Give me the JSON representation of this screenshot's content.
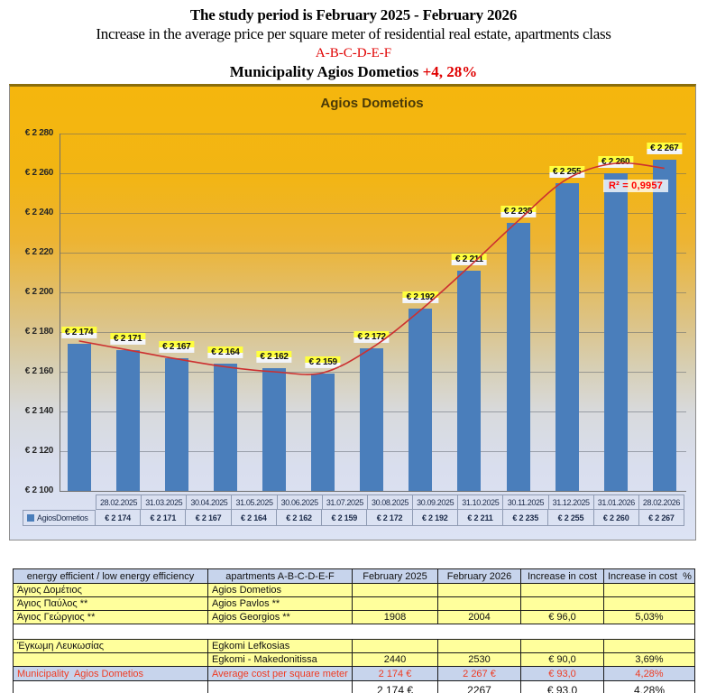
{
  "header": {
    "line1": "The study period is February 2025 - February 2026",
    "line2": "Increase in the average price per square meter of residential real estate, apartments class",
    "line3": "A-B-C-D-E-F",
    "line4_black": "Municipality Agios Dometios ",
    "line4_red": "+4, 28%"
  },
  "chart_data": {
    "type": "bar",
    "title": "Agios Dometios",
    "series_name": "AgiosDometios",
    "legend_position": "bottom-data-table",
    "grid": true,
    "categories": [
      "28.02.2025",
      "31.03.2025",
      "30.04.2025",
      "31.05.2025",
      "30.06.2025",
      "31.07.2025",
      "30.08.2025",
      "30.09.2025",
      "31.10.2025",
      "30.11.2025",
      "31.12.2025",
      "31.01.2026",
      "28.02.2026"
    ],
    "values": [
      2174,
      2171,
      2167,
      2164,
      2162,
      2159,
      2172,
      2192,
      2211,
      2235,
      2255,
      2260,
      2267
    ],
    "value_labels": [
      "€ 2 174",
      "€ 2 171",
      "€ 2 167",
      "€ 2 164",
      "€ 2 162",
      "€ 2 159",
      "€ 2 172",
      "€ 2 192",
      "€ 2 211",
      "€ 2 235",
      "€ 2 255",
      "€ 2 260",
      "€ 2 267"
    ],
    "xlabel": "",
    "ylabel": "",
    "ylim": [
      2100,
      2280
    ],
    "y_tick_values": [
      2280,
      2260,
      2240,
      2220,
      2200,
      2180,
      2160,
      2140,
      2120,
      2100
    ],
    "y_tick_labels": [
      "€ 2 280",
      "€ 2 260",
      "€ 2 240",
      "€ 2 220",
      "€ 2 200",
      "€ 2 180",
      "€ 2 160",
      "€ 2 140",
      "€ 2 120",
      "€ 2 100"
    ],
    "bar_color": "#4a7ebb",
    "trendline": {
      "type": "polynomial",
      "r2_label": "R² = 0,9957",
      "color": "#cc3030",
      "fit_values": [
        2175.5,
        2171,
        2166.5,
        2162.5,
        2160,
        2159.5,
        2172,
        2191,
        2213,
        2236,
        2257,
        2265,
        2262.5
      ]
    }
  },
  "table": {
    "headers": [
      "energy efficient / low energy efficiency",
      "apartments A-B-C-D-E-F",
      "February 2025",
      "February 2026",
      "Increase in cost",
      "Increase in cost  %"
    ],
    "rows": [
      {
        "style": "yellow",
        "cells": [
          "Άγιος Δομέτιος",
          "Agios Dometios",
          "",
          "",
          "",
          ""
        ]
      },
      {
        "style": "yellow",
        "cells": [
          "Άγιος Παύλος **",
          "Agios Pavlos **",
          "",
          "",
          "",
          ""
        ]
      },
      {
        "style": "yellow",
        "cells": [
          "Άγιος Γεώργιος **",
          "Agios Georgios **",
          "1908",
          "2004",
          "€ 96,0",
          "5,03%"
        ]
      },
      {
        "style": "blank",
        "cells": [
          "",
          "",
          "",
          "",
          "",
          ""
        ]
      },
      {
        "style": "yellow",
        "cells": [
          "Έγκωμη Λευκωσίας",
          "Egkomi Lefkosias",
          "",
          "",
          "",
          ""
        ]
      },
      {
        "style": "yellow",
        "cells": [
          "",
          "Egkomi - Makedonitissa",
          "2440",
          "2530",
          "€ 90,0",
          "3,69%"
        ]
      },
      {
        "style": "highlight",
        "cells": [
          "Municipality  Agios Dometios",
          "Average cost per square meter",
          "2 174 €",
          "2 267 €",
          "€ 93,0",
          "4,28%"
        ]
      },
      {
        "style": "clipped",
        "cells": [
          "",
          "",
          "2 174 €",
          "2267",
          "€ 93,0",
          "4,28%"
        ]
      }
    ]
  },
  "colors": {
    "accent_red": "#e00000",
    "bar": "#4a7ebb",
    "label_highlight": "#ffff3e",
    "table_yellow": "#ffff9c",
    "table_blue": "#c7d4ec"
  }
}
